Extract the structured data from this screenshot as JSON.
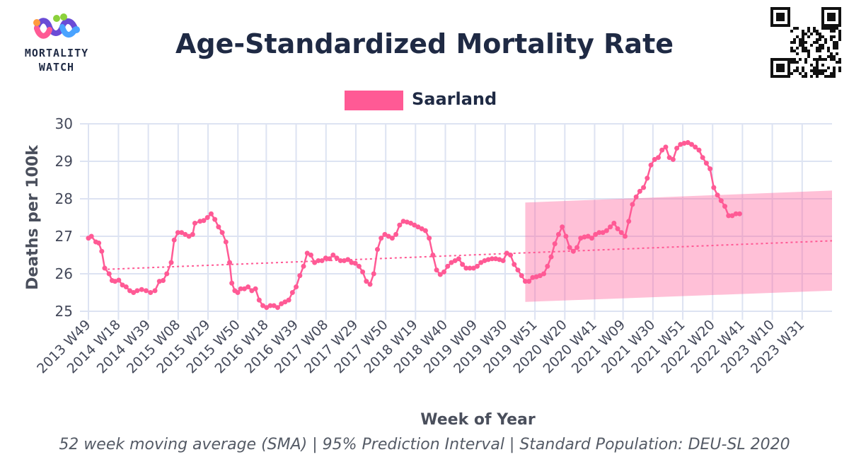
{
  "logo": {
    "line1": "MORTALITY",
    "line2": "WATCH"
  },
  "title": "Age-Standardized Mortality Rate",
  "legend": {
    "label": "Saarland",
    "color": "#ff5a95"
  },
  "caption": "52 week moving average (SMA) | 95% Prediction Interval | Standard Population: DEU-SL 2020",
  "chart_data": {
    "type": "line",
    "title": "Age-Standardized Mortality Rate",
    "xlabel": "Week of Year",
    "ylabel": "Deaths per 100k",
    "ylim": [
      25,
      30
    ],
    "yticks": [
      25,
      26,
      27,
      28,
      29,
      30
    ],
    "xlim": [
      2013.94,
      2024.0
    ],
    "xticks": [
      {
        "x": 2013.94,
        "label": "2013 W49"
      },
      {
        "x": 2014.346,
        "label": "2014 W18"
      },
      {
        "x": 2014.75,
        "label": "2014 W39"
      },
      {
        "x": 2015.154,
        "label": "2015 W08"
      },
      {
        "x": 2015.558,
        "label": "2015 W29"
      },
      {
        "x": 2015.962,
        "label": "2015 W50"
      },
      {
        "x": 2016.346,
        "label": "2016 W18"
      },
      {
        "x": 2016.75,
        "label": "2016 W39"
      },
      {
        "x": 2017.154,
        "label": "2017 W08"
      },
      {
        "x": 2017.558,
        "label": "2017 W29"
      },
      {
        "x": 2017.962,
        "label": "2017 W50"
      },
      {
        "x": 2018.365,
        "label": "2018 W19"
      },
      {
        "x": 2018.769,
        "label": "2018 W40"
      },
      {
        "x": 2019.173,
        "label": "2019 W09"
      },
      {
        "x": 2019.577,
        "label": "2019 W30"
      },
      {
        "x": 2019.981,
        "label": "2019 W51"
      },
      {
        "x": 2020.385,
        "label": "2020 W20"
      },
      {
        "x": 2020.788,
        "label": "2020 W41"
      },
      {
        "x": 2021.173,
        "label": "2021 W09"
      },
      {
        "x": 2021.577,
        "label": "2021 W30"
      },
      {
        "x": 2021.981,
        "label": "2021 W51"
      },
      {
        "x": 2022.385,
        "label": "2022 W20"
      },
      {
        "x": 2022.788,
        "label": "2022 W41"
      },
      {
        "x": 2023.192,
        "label": "2023 W10"
      },
      {
        "x": 2023.596,
        "label": "2023 W31"
      }
    ],
    "grid": true,
    "legend_position": "top-center",
    "series": [
      {
        "name": "Saarland",
        "color": "#ff5a95",
        "points": [
          [
            2013.94,
            26.95
          ],
          [
            2013.98,
            27.0
          ],
          [
            2014.04,
            26.85
          ],
          [
            2014.08,
            26.82
          ],
          [
            2014.12,
            26.6
          ],
          [
            2014.16,
            26.15
          ],
          [
            2014.22,
            26.0
          ],
          [
            2014.26,
            25.82
          ],
          [
            2014.3,
            25.8
          ],
          [
            2014.35,
            25.83
          ],
          [
            2014.4,
            25.7
          ],
          [
            2014.45,
            25.65
          ],
          [
            2014.5,
            25.55
          ],
          [
            2014.55,
            25.5
          ],
          [
            2014.6,
            25.55
          ],
          [
            2014.66,
            25.58
          ],
          [
            2014.72,
            25.55
          ],
          [
            2014.78,
            25.5
          ],
          [
            2014.84,
            25.55
          ],
          [
            2014.9,
            25.8
          ],
          [
            2014.95,
            25.82
          ],
          [
            2015.0,
            26.0
          ],
          [
            2015.06,
            26.3
          ],
          [
            2015.1,
            26.9
          ],
          [
            2015.15,
            27.1
          ],
          [
            2015.2,
            27.1
          ],
          [
            2015.25,
            27.05
          ],
          [
            2015.3,
            27.0
          ],
          [
            2015.35,
            27.05
          ],
          [
            2015.38,
            27.35
          ],
          [
            2015.45,
            27.4
          ],
          [
            2015.5,
            27.42
          ],
          [
            2015.55,
            27.5
          ],
          [
            2015.6,
            27.6
          ],
          [
            2015.65,
            27.45
          ],
          [
            2015.7,
            27.25
          ],
          [
            2015.75,
            27.1
          ],
          [
            2015.8,
            26.85
          ],
          [
            2015.85,
            26.3
          ],
          [
            2015.88,
            25.75
          ],
          [
            2015.92,
            25.55
          ],
          [
            2015.96,
            25.5
          ],
          [
            2016.0,
            25.6
          ],
          [
            2016.05,
            25.6
          ],
          [
            2016.1,
            25.65
          ],
          [
            2016.15,
            25.55
          ],
          [
            2016.2,
            25.6
          ],
          [
            2016.25,
            25.3
          ],
          [
            2016.3,
            25.15
          ],
          [
            2016.35,
            25.1
          ],
          [
            2016.4,
            25.15
          ],
          [
            2016.45,
            25.15
          ],
          [
            2016.5,
            25.1
          ],
          [
            2016.55,
            25.2
          ],
          [
            2016.6,
            25.25
          ],
          [
            2016.65,
            25.3
          ],
          [
            2016.7,
            25.5
          ],
          [
            2016.75,
            25.65
          ],
          [
            2016.8,
            25.95
          ],
          [
            2016.85,
            26.2
          ],
          [
            2016.9,
            26.55
          ],
          [
            2016.95,
            26.5
          ],
          [
            2017.0,
            26.3
          ],
          [
            2017.05,
            26.35
          ],
          [
            2017.1,
            26.35
          ],
          [
            2017.15,
            26.42
          ],
          [
            2017.2,
            26.4
          ],
          [
            2017.25,
            26.5
          ],
          [
            2017.3,
            26.42
          ],
          [
            2017.35,
            26.35
          ],
          [
            2017.4,
            26.35
          ],
          [
            2017.45,
            26.38
          ],
          [
            2017.5,
            26.3
          ],
          [
            2017.55,
            26.28
          ],
          [
            2017.6,
            26.2
          ],
          [
            2017.65,
            26.05
          ],
          [
            2017.7,
            25.8
          ],
          [
            2017.75,
            25.72
          ],
          [
            2017.8,
            26.0
          ],
          [
            2017.85,
            26.65
          ],
          [
            2017.9,
            26.95
          ],
          [
            2017.95,
            27.05
          ],
          [
            2018.0,
            27.0
          ],
          [
            2018.05,
            26.95
          ],
          [
            2018.1,
            27.05
          ],
          [
            2018.15,
            27.3
          ],
          [
            2018.2,
            27.4
          ],
          [
            2018.25,
            27.38
          ],
          [
            2018.3,
            27.35
          ],
          [
            2018.35,
            27.3
          ],
          [
            2018.4,
            27.25
          ],
          [
            2018.45,
            27.2
          ],
          [
            2018.5,
            27.15
          ],
          [
            2018.55,
            26.95
          ],
          [
            2018.6,
            26.5
          ],
          [
            2018.65,
            26.1
          ],
          [
            2018.7,
            25.98
          ],
          [
            2018.75,
            26.05
          ],
          [
            2018.8,
            26.2
          ],
          [
            2018.85,
            26.3
          ],
          [
            2018.9,
            26.35
          ],
          [
            2018.95,
            26.4
          ],
          [
            2019.0,
            26.25
          ],
          [
            2019.05,
            26.15
          ],
          [
            2019.1,
            26.15
          ],
          [
            2019.15,
            26.15
          ],
          [
            2019.2,
            26.2
          ],
          [
            2019.25,
            26.3
          ],
          [
            2019.3,
            26.35
          ],
          [
            2019.35,
            26.38
          ],
          [
            2019.4,
            26.4
          ],
          [
            2019.45,
            26.4
          ],
          [
            2019.5,
            26.38
          ],
          [
            2019.55,
            26.35
          ],
          [
            2019.6,
            26.55
          ],
          [
            2019.65,
            26.5
          ],
          [
            2019.7,
            26.25
          ],
          [
            2019.75,
            26.1
          ],
          [
            2019.8,
            25.95
          ],
          [
            2019.85,
            25.8
          ],
          [
            2019.9,
            25.8
          ],
          [
            2019.95,
            25.9
          ],
          [
            2020.0,
            25.92
          ],
          [
            2020.05,
            25.95
          ],
          [
            2020.1,
            26.0
          ],
          [
            2020.15,
            26.2
          ],
          [
            2020.2,
            26.45
          ],
          [
            2020.25,
            26.8
          ],
          [
            2020.3,
            27.05
          ],
          [
            2020.35,
            27.25
          ],
          [
            2020.4,
            27.0
          ],
          [
            2020.45,
            26.7
          ],
          [
            2020.5,
            26.6
          ],
          [
            2020.55,
            26.7
          ],
          [
            2020.6,
            26.95
          ],
          [
            2020.65,
            26.98
          ],
          [
            2020.7,
            27.0
          ],
          [
            2020.75,
            26.95
          ],
          [
            2020.8,
            27.05
          ],
          [
            2020.85,
            27.1
          ],
          [
            2020.9,
            27.1
          ],
          [
            2020.95,
            27.15
          ],
          [
            2021.0,
            27.25
          ],
          [
            2021.05,
            27.35
          ],
          [
            2021.1,
            27.2
          ],
          [
            2021.15,
            27.1
          ],
          [
            2021.2,
            27.0
          ],
          [
            2021.25,
            27.4
          ],
          [
            2021.3,
            27.85
          ],
          [
            2021.35,
            28.05
          ],
          [
            2021.4,
            28.2
          ],
          [
            2021.45,
            28.3
          ],
          [
            2021.5,
            28.55
          ],
          [
            2021.55,
            28.9
          ],
          [
            2021.6,
            29.05
          ],
          [
            2021.65,
            29.1
          ],
          [
            2021.7,
            29.3
          ],
          [
            2021.75,
            29.38
          ],
          [
            2021.8,
            29.1
          ],
          [
            2021.85,
            29.05
          ],
          [
            2021.9,
            29.35
          ],
          [
            2021.95,
            29.45
          ],
          [
            2022.0,
            29.48
          ],
          [
            2022.05,
            29.5
          ],
          [
            2022.1,
            29.45
          ],
          [
            2022.15,
            29.38
          ],
          [
            2022.2,
            29.3
          ],
          [
            2022.25,
            29.1
          ],
          [
            2022.3,
            28.95
          ],
          [
            2022.35,
            28.8
          ],
          [
            2022.4,
            28.3
          ],
          [
            2022.45,
            28.1
          ],
          [
            2022.5,
            27.95
          ],
          [
            2022.55,
            27.8
          ],
          [
            2022.6,
            27.55
          ],
          [
            2022.65,
            27.55
          ],
          [
            2022.7,
            27.6
          ],
          [
            2022.75,
            27.6
          ]
        ]
      }
    ],
    "trend": {
      "x": [
        2014.2,
        2024.0
      ],
      "y": [
        26.12,
        26.88
      ]
    },
    "prediction_interval": {
      "x": [
        2019.85,
        2024.0
      ],
      "upper": [
        27.9,
        28.22
      ],
      "lower": [
        25.25,
        25.55
      ]
    }
  }
}
